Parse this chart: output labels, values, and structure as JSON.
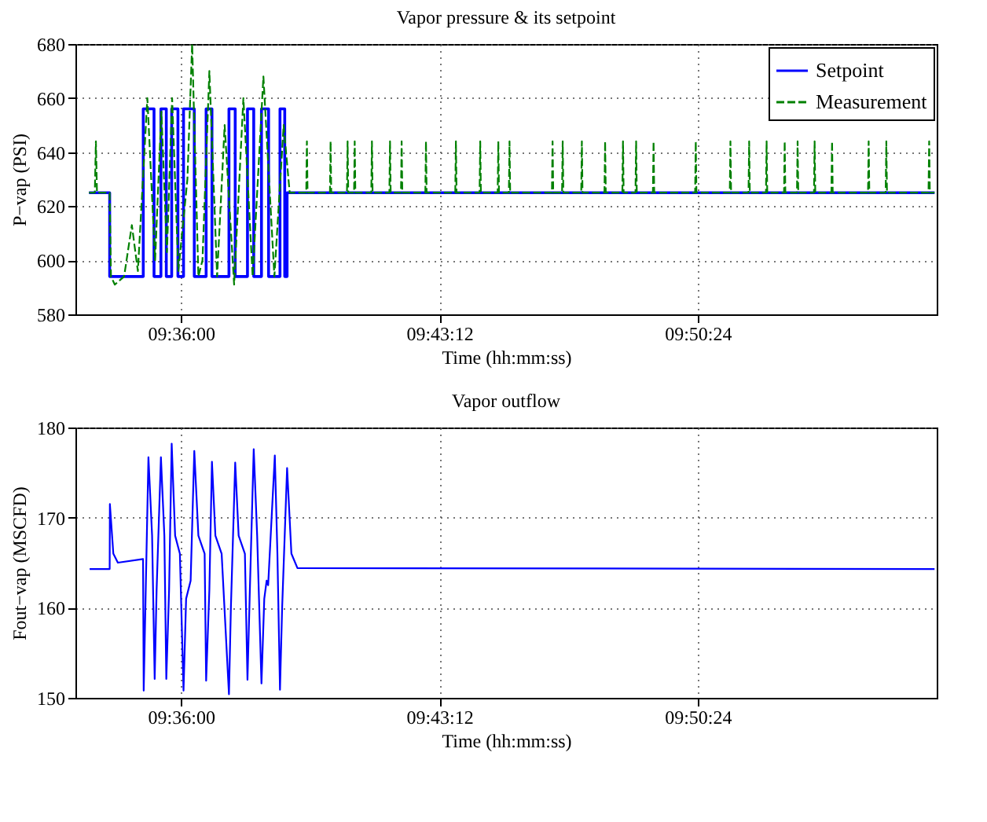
{
  "chart_data": [
    {
      "type": "line",
      "title": "Vapor pressure & its setpoint",
      "xlabel": "Time (hh:mm:ss)",
      "ylabel": "P−vap (PSI)",
      "xlim": [
        9.551,
        9.951
      ],
      "xticks": [
        {
          "value": 9.6,
          "label": "09:36:00"
        },
        {
          "value": 9.72,
          "label": "09:43:12"
        },
        {
          "value": 9.84,
          "label": "09:50:24"
        }
      ],
      "ylim": [
        580,
        680
      ],
      "yticks": [
        580,
        600,
        620,
        640,
        660,
        680
      ],
      "grid": true,
      "legend": "top right",
      "marker": "none",
      "series": [
        {
          "name": "Setpoint",
          "type": "step",
          "color": "#0000ff",
          "line_style": "solid",
          "x": [
            9.5573,
            9.5669,
            9.5825,
            9.5875,
            9.5907,
            9.5932,
            9.5957,
            9.5986,
            9.6012,
            9.6062,
            9.6117,
            9.6144,
            9.6223,
            9.6252,
            9.6309,
            9.6338,
            9.6374,
            9.6407,
            9.646,
            9.6482,
            9.6493,
            9.95
          ],
          "values": [
            625,
            594,
            656,
            594,
            656,
            594,
            656,
            594,
            656,
            594,
            656,
            594,
            656,
            594,
            656,
            594,
            656,
            594,
            656,
            594,
            625,
            625
          ]
        },
        {
          "name": "Measurement",
          "type": "line",
          "color": "#008000",
          "line_style": "dashed",
          "x": [
            9.5573,
            9.56,
            9.5605,
            9.561,
            9.5669,
            9.5675,
            9.5693,
            9.5736,
            9.5772,
            9.58,
            9.5844,
            9.588,
            9.5909,
            9.5935,
            9.5959,
            9.5988,
            9.603,
            9.6052,
            9.6081,
            9.61,
            9.6132,
            9.6168,
            9.6203,
            9.6247,
            9.629,
            9.6333,
            9.6383,
            9.6434,
            9.6477,
            9.6505,
            9.6582,
            9.6585,
            9.6588,
            9.6692,
            9.6695,
            9.6698,
            9.6771,
            9.6774,
            9.6777,
            9.6804,
            9.6807,
            9.681,
            9.6884,
            9.6887,
            9.689,
            9.6968,
            9.6971,
            9.6974,
            9.7022,
            9.7025,
            9.7028,
            9.7135,
            9.7138,
            9.7141,
            9.7274,
            9.7277,
            9.728,
            9.7387,
            9.739,
            9.7393,
            9.7471,
            9.7474,
            9.7477,
            9.7523,
            9.7526,
            9.7529,
            9.7723,
            9.7726,
            9.7729,
            9.777,
            9.7773,
            9.7776,
            9.7859,
            9.7862,
            9.7865,
            9.7967,
            9.797,
            9.7973,
            9.805,
            9.8053,
            9.8056,
            9.8111,
            9.8114,
            9.8117,
            9.8192,
            9.8195,
            9.8198,
            9.8388,
            9.8391,
            9.8394,
            9.8549,
            9.8552,
            9.8555,
            9.8636,
            9.8639,
            9.8642,
            9.8717,
            9.872,
            9.8723,
            9.8801,
            9.8804,
            9.8807,
            9.8861,
            9.8864,
            9.8867,
            9.894,
            9.8943,
            9.8946,
            9.9021,
            9.9024,
            9.9027,
            9.9191,
            9.9194,
            9.9197,
            9.9273,
            9.9276,
            9.9279,
            9.9472,
            9.9475,
            9.9478,
            9.95
          ],
          "values": [
            625,
            625,
            644,
            625,
            625,
            594,
            591,
            594,
            613,
            596,
            660,
            600,
            655,
            603,
            660,
            596,
            630,
            680,
            594,
            600,
            670,
            594,
            650,
            591,
            660,
            594,
            668,
            594,
            650,
            625,
            625,
            644,
            625,
            625,
            644,
            625,
            625,
            644,
            625,
            625,
            644,
            625,
            625,
            644,
            625,
            625,
            644,
            625,
            625,
            644,
            625,
            625,
            644,
            625,
            625,
            644,
            625,
            625,
            644,
            625,
            625,
            644,
            625,
            625,
            644,
            625,
            625,
            644,
            625,
            625,
            644,
            625,
            625,
            644,
            625,
            625,
            644,
            625,
            625,
            644,
            625,
            625,
            644,
            625,
            625,
            644,
            625,
            625,
            644,
            625,
            625,
            644,
            625,
            625,
            644,
            625,
            625,
            644,
            625,
            625,
            644,
            625,
            625,
            644,
            625,
            625,
            644,
            625,
            625,
            644,
            625,
            625,
            644,
            625,
            625,
            644,
            625,
            625,
            644,
            625,
            625
          ]
        }
      ]
    },
    {
      "type": "line",
      "title": "Vapor outflow",
      "xlabel": "Time (hh:mm:ss)",
      "ylabel": "Fout−vap (MSCFD)",
      "xlim": [
        9.551,
        9.951
      ],
      "xticks": [
        {
          "value": 9.6,
          "label": "09:36:00"
        },
        {
          "value": 9.72,
          "label": "09:43:12"
        },
        {
          "value": 9.84,
          "label": "09:50:24"
        }
      ],
      "ylim": [
        150,
        180
      ],
      "yticks": [
        150,
        160,
        170,
        180
      ],
      "grid": true,
      "marker": "none",
      "series": [
        {
          "color": "#0000ff",
          "line_style": "solid",
          "x": [
            9.5576,
            9.5669,
            9.567,
            9.5686,
            9.5707,
            9.5824,
            9.5827,
            9.5849,
            9.5866,
            9.5878,
            9.5887,
            9.5907,
            9.5923,
            9.5932,
            9.5945,
            9.5957,
            9.5973,
            9.5995,
            9.6012,
            9.6024,
            9.6045,
            9.6062,
            9.6081,
            9.611,
            9.6117,
            9.6132,
            9.6144,
            9.616,
            9.6189,
            9.6223,
            9.6232,
            9.6252,
            9.6268,
            9.6297,
            9.6309,
            9.6319,
            9.6338,
            9.6354,
            9.6374,
            9.6387,
            9.6398,
            9.6405,
            9.6436,
            9.6448,
            9.646,
            9.647,
            9.6493,
            9.6513,
            9.6541,
            9.95
          ],
          "values": [
            164.3,
            164.3,
            171.5,
            166,
            165,
            165.4,
            150.8,
            176.7,
            168,
            152.1,
            162,
            176.7,
            168,
            152.1,
            162,
            178.2,
            168,
            166,
            150.8,
            161,
            163,
            177.4,
            168,
            166,
            151.9,
            162,
            176.2,
            168,
            166,
            150.4,
            160,
            176.1,
            168,
            166,
            152,
            161,
            177.6,
            168,
            151.6,
            161,
            163,
            162.5,
            176.9,
            166,
            150.9,
            160,
            175.5,
            166,
            164.4,
            164.3
          ]
        }
      ]
    }
  ]
}
